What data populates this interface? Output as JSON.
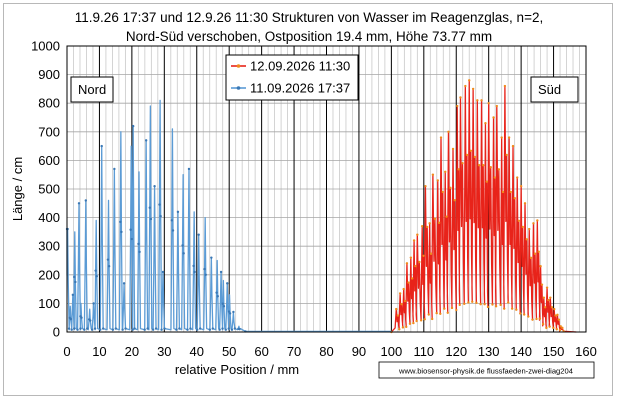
{
  "chart_data": {
    "type": "line",
    "title": [
      "11.9.26 17:37  und 12.9.26  11:30  Strukturen von Wasser im Reagenzglas, n=2,",
      "Nord-Süd verschoben, Ostposition 19.4  mm, Höhe 73.77 mm"
    ],
    "xlabel": "relative Position /  mm",
    "ylabel": "Länge / cm",
    "xlim": [
      0,
      160
    ],
    "ylim": [
      0,
      1000
    ],
    "x_ticks": [
      0,
      10,
      20,
      30,
      40,
      50,
      60,
      70,
      80,
      90,
      100,
      110,
      120,
      130,
      140,
      150,
      160
    ],
    "y_ticks": [
      0,
      100,
      200,
      300,
      400,
      500,
      600,
      700,
      800,
      900,
      1000
    ],
    "grid": {
      "minor_x_step": 2,
      "major_x_step": 10,
      "horizontal": true
    },
    "legend_position": "top-center",
    "annotations": [
      {
        "text": "Nord",
        "x": 7.5,
        "y": 840
      },
      {
        "text": "Süd",
        "x": 148,
        "y": 840
      }
    ],
    "watermark": "www.biosensor-physik.de  flussfaeden-zwei-diag204",
    "series": [
      {
        "name": "12.09.2026 11:30",
        "color": "#e8231a",
        "marker_color": "#f08a1c",
        "x_range": [
          100,
          157
        ],
        "profile": "sawtooth",
        "peaks": [
          [
            101.5,
            80
          ],
          [
            102.7,
            135
          ],
          [
            103.8,
            150
          ],
          [
            104.8,
            240
          ],
          [
            106.0,
            260
          ],
          [
            107.0,
            320
          ],
          [
            108.0,
            340
          ],
          [
            109.5,
            370
          ],
          [
            110.5,
            510
          ],
          [
            111.8,
            380
          ],
          [
            112.8,
            550
          ],
          [
            114.3,
            530
          ],
          [
            115.3,
            680
          ],
          [
            116.6,
            560
          ],
          [
            117.6,
            700
          ],
          [
            119.0,
            640
          ],
          [
            120.3,
            790
          ],
          [
            121.3,
            820
          ],
          [
            122.8,
            860
          ],
          [
            124.0,
            880
          ],
          [
            125.2,
            850
          ],
          [
            126.5,
            810
          ],
          [
            127.8,
            810
          ],
          [
            129.0,
            730
          ],
          [
            130.0,
            800
          ],
          [
            131.5,
            750
          ],
          [
            132.5,
            790
          ],
          [
            134.0,
            680
          ],
          [
            135.0,
            860
          ],
          [
            136.3,
            680
          ],
          [
            137.5,
            650
          ],
          [
            138.8,
            540
          ],
          [
            140.0,
            510
          ],
          [
            141.2,
            450
          ],
          [
            142.5,
            360
          ],
          [
            143.8,
            380
          ],
          [
            145.0,
            390
          ],
          [
            146.0,
            230
          ],
          [
            147.0,
            120
          ],
          [
            148.0,
            155
          ],
          [
            149.0,
            120
          ],
          [
            150.2,
            80
          ],
          [
            151.2,
            60
          ],
          [
            152.2,
            20
          ]
        ]
      },
      {
        "name": "11.09.2026 17:37",
        "color": "#5b9bd5",
        "marker_color": "#3a78b5",
        "x_range": [
          0,
          53
        ],
        "profile": "spike",
        "peaks": [
          [
            0.2,
            360
          ],
          [
            1.0,
            90
          ],
          [
            1.8,
            130
          ],
          [
            2.4,
            350
          ],
          [
            3.7,
            450
          ],
          [
            4.3,
            100
          ],
          [
            5.8,
            460
          ],
          [
            7.0,
            80
          ],
          [
            8.2,
            100
          ],
          [
            9.0,
            390
          ],
          [
            10.7,
            650
          ],
          [
            12.8,
            460
          ],
          [
            14.6,
            570
          ],
          [
            16.6,
            700
          ],
          [
            17.6,
            170
          ],
          [
            19.8,
            650
          ],
          [
            20.4,
            720
          ],
          [
            22.2,
            560
          ],
          [
            24.4,
            670
          ],
          [
            25.7,
            790
          ],
          [
            27.0,
            510
          ],
          [
            28.7,
            810
          ],
          [
            29.6,
            210
          ],
          [
            32.5,
            710
          ],
          [
            34.2,
            420
          ],
          [
            35.8,
            550
          ],
          [
            37.6,
            570
          ],
          [
            39.2,
            420
          ],
          [
            40.6,
            340
          ],
          [
            42.6,
            400
          ],
          [
            44.5,
            260
          ],
          [
            46.3,
            250
          ],
          [
            47.5,
            210
          ],
          [
            48.2,
            180
          ],
          [
            49.4,
            170
          ],
          [
            50.1,
            130
          ],
          [
            51.3,
            70
          ],
          [
            53.0,
            20
          ]
        ]
      }
    ]
  }
}
